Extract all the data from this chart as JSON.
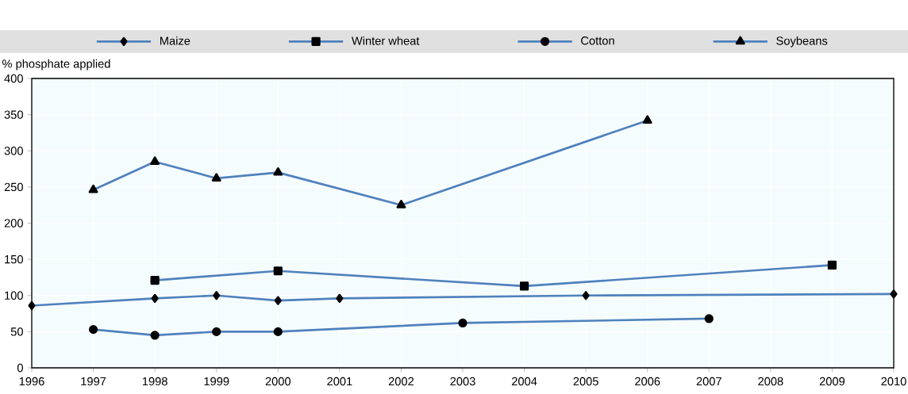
{
  "chart_data": {
    "type": "line",
    "ylabel": "% phosphate applied",
    "series": [
      {
        "name": "Maize",
        "color": "#4f81bd",
        "marker": "diamond",
        "x": [
          1996,
          1998,
          1999,
          2000,
          2001,
          2005,
          2010
        ],
        "values": [
          86,
          96,
          100,
          93,
          96,
          100,
          102
        ]
      },
      {
        "name": "Winter wheat",
        "color": "#4f81bd",
        "marker": "square",
        "x": [
          1998,
          2000,
          2004,
          2009
        ],
        "values": [
          121,
          134,
          113,
          142
        ]
      },
      {
        "name": "Cotton",
        "color": "#4f81bd",
        "marker": "circle",
        "x": [
          1997,
          1998,
          1999,
          2000,
          2003,
          2007
        ],
        "values": [
          53,
          45,
          50,
          50,
          62,
          68
        ]
      },
      {
        "name": "Soybeans",
        "color": "#4f81bd",
        "marker": "triangle",
        "x": [
          1997,
          1998,
          1999,
          2000,
          2002,
          2006
        ],
        "values": [
          246,
          285,
          262,
          270,
          225,
          342
        ]
      }
    ],
    "xlim": [
      1996,
      2010
    ],
    "xticks": [
      1996,
      1997,
      1998,
      1999,
      2000,
      2001,
      2002,
      2003,
      2004,
      2005,
      2006,
      2007,
      2008,
      2009,
      2010
    ],
    "ylim": [
      0,
      400
    ],
    "yticks": [
      0,
      50,
      100,
      150,
      200,
      250,
      300,
      350,
      400
    ],
    "grid": true,
    "legend": "top",
    "line_style": "solid"
  }
}
